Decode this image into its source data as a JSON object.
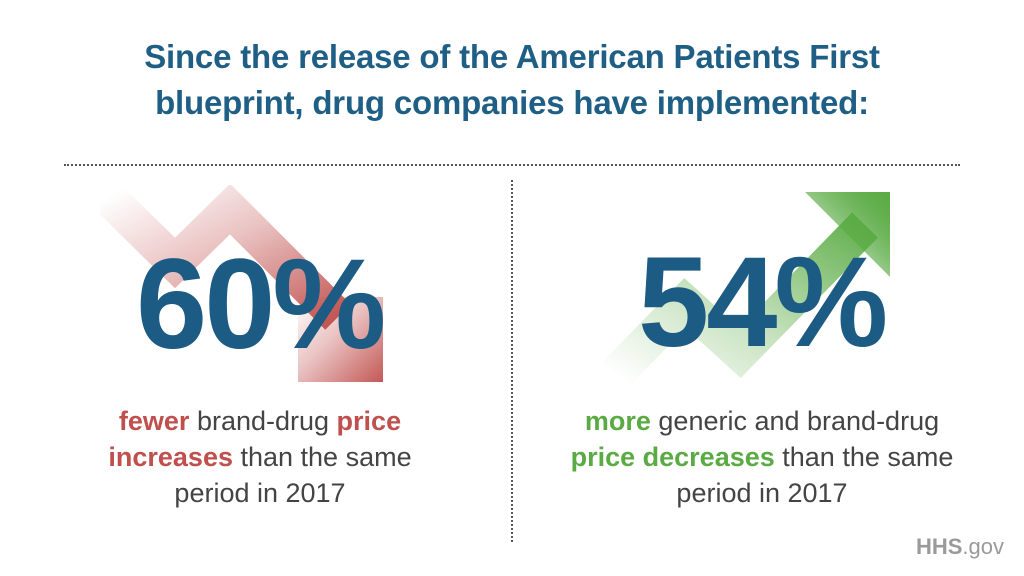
{
  "title": {
    "line1": "Since the release of the American Patients First",
    "line2": "blueprint, drug companies have implemented:"
  },
  "left": {
    "stat": "60%",
    "highlight1": "fewer",
    "text1": " brand-drug ",
    "highlight2": "price",
    "highlight3": "increases",
    "text2": " than the same",
    "text3": "period in 2017",
    "arrow_icon": "trend-down-arrow-icon",
    "accent_color": "#c0504d"
  },
  "right": {
    "stat": "54%",
    "highlight1": "more",
    "text1": " generic and brand-drug",
    "highlight2": "price decreases",
    "text2": " than the same",
    "text3": "period in 2017",
    "arrow_icon": "trend-up-arrow-icon",
    "accent_color": "#5aab44"
  },
  "logo": {
    "bold": "HHS",
    "suffix": ".gov"
  }
}
